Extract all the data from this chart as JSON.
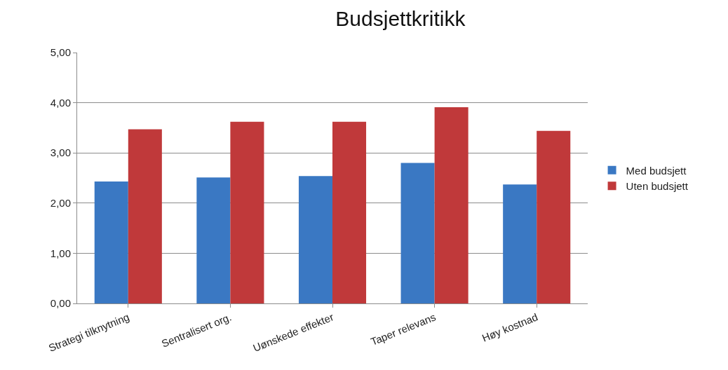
{
  "chart_data": {
    "type": "bar",
    "title": "Budsjettkritikk",
    "categories": [
      "Strategi tilknytning",
      "Sentralisert org.",
      "Uønskede effekter",
      "Taper relevans",
      "Høy kostnad"
    ],
    "series": [
      {
        "name": "Med budsjett",
        "color": "#3a78c3",
        "values": [
          2.43,
          2.51,
          2.54,
          2.8,
          2.37
        ]
      },
      {
        "name": "Uten budsjett",
        "color": "#c0393a",
        "values": [
          3.47,
          3.62,
          3.62,
          3.91,
          3.44
        ]
      }
    ],
    "ylim": [
      0,
      5
    ],
    "yticks": [
      {
        "value": 0,
        "label": "0,00"
      },
      {
        "value": 1,
        "label": "1,00"
      },
      {
        "value": 2,
        "label": "2,00"
      },
      {
        "value": 3,
        "label": "3,00"
      },
      {
        "value": 4,
        "label": "4,00"
      },
      {
        "value": 5,
        "label": "5,00"
      }
    ],
    "grid": "y",
    "legend": "right"
  }
}
